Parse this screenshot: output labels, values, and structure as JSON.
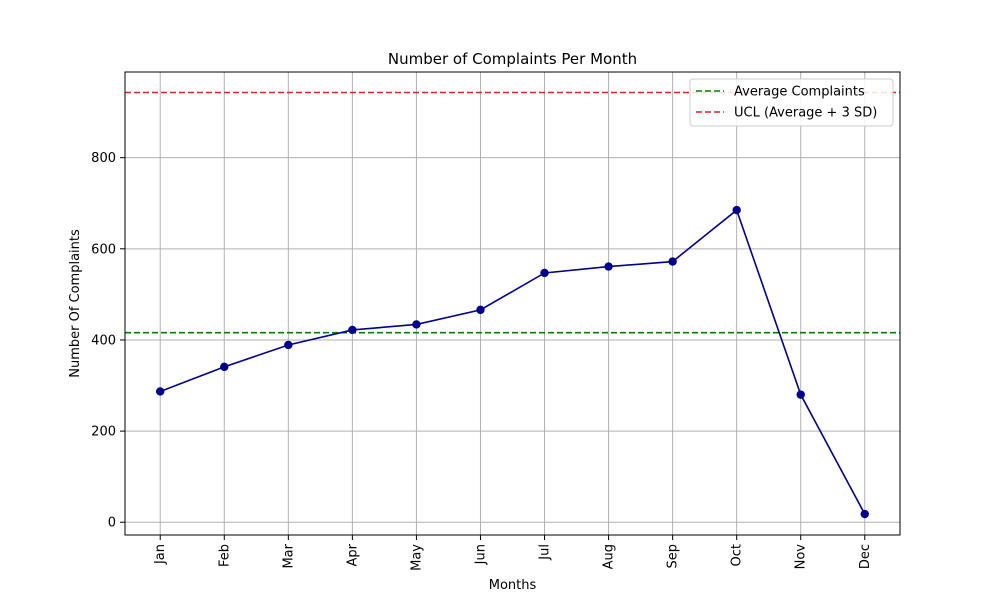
{
  "chart_data": {
    "type": "line",
    "title": "Number of Complaints Per Month",
    "xlabel": "Months",
    "ylabel": "Number Of Complaints",
    "categories": [
      "Jan",
      "Feb",
      "Mar",
      "Apr",
      "May",
      "Jun",
      "Jul",
      "Aug",
      "Sep",
      "Oct",
      "Nov",
      "Dec"
    ],
    "series": [
      {
        "values": [
          287,
          341,
          389,
          422,
          434,
          466,
          547,
          561,
          572,
          685,
          280,
          18
        ],
        "color": "#00008b",
        "marker": "circle"
      }
    ],
    "reference_lines": [
      {
        "name": "Average Complaints",
        "value": 416,
        "color": "#008000",
        "style": "dashed"
      },
      {
        "name": "UCL (Average + 3 SD)",
        "value": 943,
        "color": "#d62728",
        "style": "dashed"
      }
    ],
    "ylim": [
      -28,
      988
    ],
    "yticks": [
      0,
      200,
      400,
      600,
      800
    ],
    "grid": true,
    "legend_position": "top-right",
    "xtick_rotation": "vertical"
  }
}
